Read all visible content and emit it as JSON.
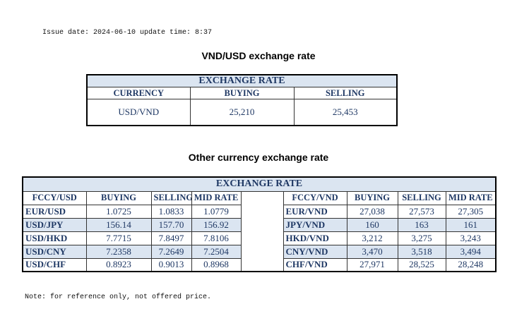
{
  "header": {
    "issue_date": "Issue date: 2024-06-10 update time: 8:37"
  },
  "table1": {
    "title": "VND/USD exchange rate",
    "heading": "EXCHANGE RATE",
    "columns": [
      "CURRENCY",
      "BUYING",
      "SELLING"
    ],
    "rows": [
      [
        "USD/VND",
        "25,210",
        "25,453"
      ]
    ]
  },
  "table2": {
    "title": "Other currency exchange rate",
    "heading": "EXCHANGE  RATE",
    "columns": [
      "FCCY/USD",
      "BUYING",
      "SELLING",
      "MID RATE",
      "FCCY/VND",
      "BUYING",
      "SELLING",
      "MID RATE"
    ],
    "rows": [
      [
        "EUR/USD",
        "1.0725",
        "1.0833",
        "1.0779",
        "EUR/VND",
        "27,038",
        "27,573",
        "27,305"
      ],
      [
        "USD/JPY",
        "156.14",
        "157.70",
        "156.92",
        "JPY/VND",
        "160",
        "163",
        "161"
      ],
      [
        "USD/HKD",
        "7.7715",
        "7.8497",
        "7.8106",
        "HKD/VND",
        "3,212",
        "3,275",
        "3,243"
      ],
      [
        "USD/CNY",
        "7.2358",
        "7.2649",
        "7.2504",
        "CNY/VND",
        "3,470",
        "3,518",
        "3,494"
      ],
      [
        "USD/CHF",
        "0.8923",
        "0.9013",
        "0.8968",
        "CHF/VND",
        "27,971",
        "28,525",
        "28,248"
      ]
    ]
  },
  "note": "Note: for reference only, not offered price."
}
